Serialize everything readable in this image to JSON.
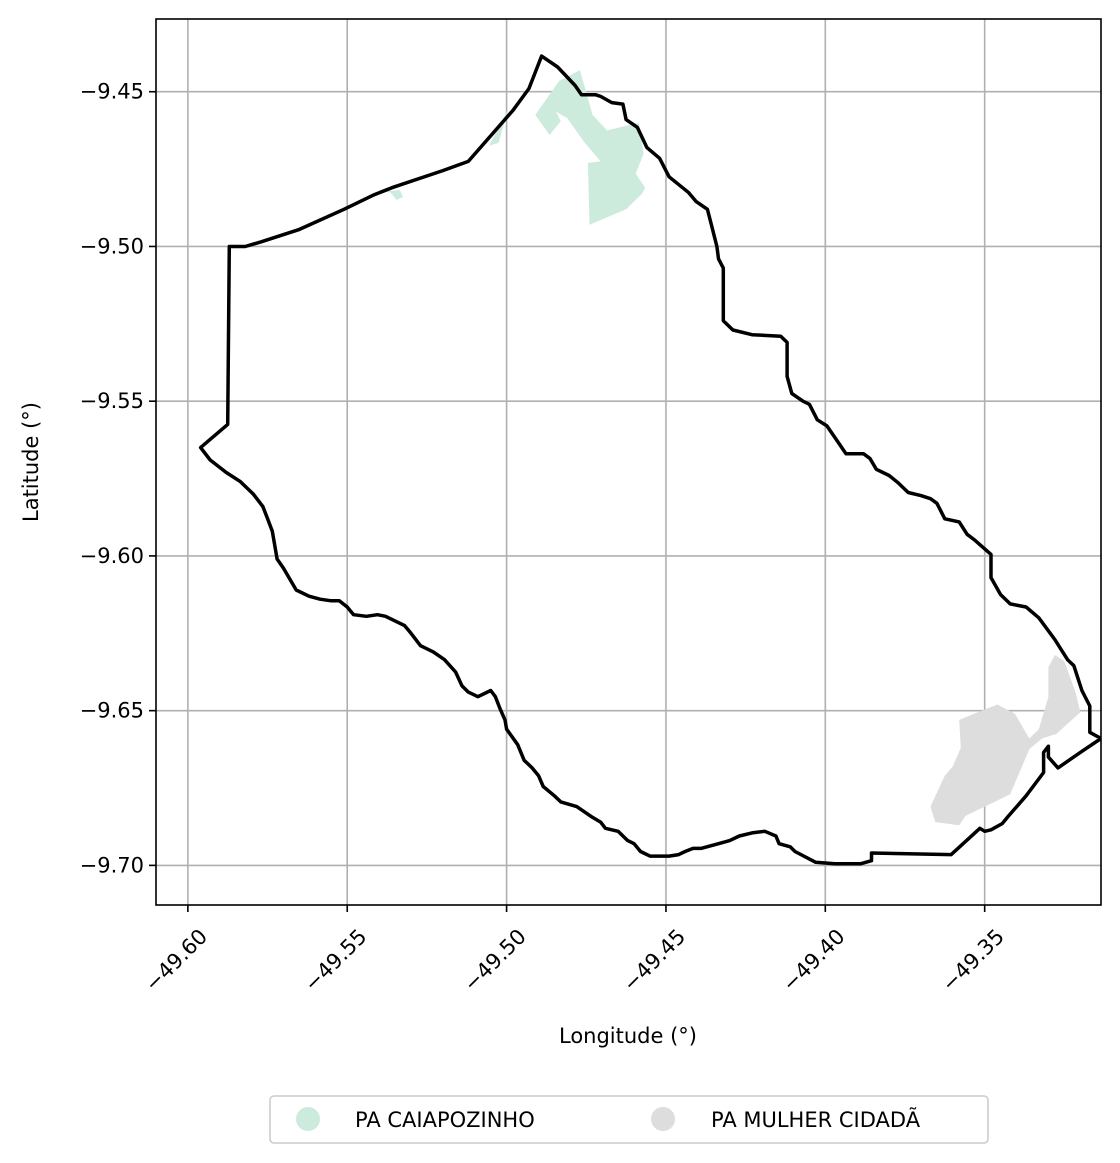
{
  "colors": {
    "boundary": "#000000",
    "grid": "#b0b0b0",
    "caiapozinho": "#cdebdd",
    "mulher_cidada": "#dddddd"
  },
  "chart_data": {
    "type": "map",
    "xlabel": "Longitude (°)",
    "ylabel": "Latitude (°)",
    "xlim": [
      -49.61,
      -49.3135
    ],
    "ylim": [
      -9.7128,
      -9.4265
    ],
    "x_ticks": [
      {
        "value": -49.6,
        "label": "−49.60"
      },
      {
        "value": -49.55,
        "label": "−49.55"
      },
      {
        "value": -49.5,
        "label": "−49.50"
      },
      {
        "value": -49.45,
        "label": "−49.45"
      },
      {
        "value": -49.4,
        "label": "−49.40"
      },
      {
        "value": -49.35,
        "label": "−49.35"
      }
    ],
    "y_ticks": [
      {
        "value": -9.45,
        "label": "−9.45"
      },
      {
        "value": -9.5,
        "label": "−9.50"
      },
      {
        "value": -9.55,
        "label": "−9.55"
      },
      {
        "value": -9.6,
        "label": "−9.60"
      },
      {
        "value": -9.65,
        "label": "−9.65"
      },
      {
        "value": -9.7,
        "label": "−9.70"
      }
    ],
    "grid": true,
    "legend": {
      "placement": "bottom-center",
      "entries": [
        {
          "label": "PA CAIAPOZINHO",
          "color": "#cdebdd"
        },
        {
          "label": "PA MULHER CIDADÃ",
          "color": "#dddddd"
        }
      ]
    },
    "settlements": [
      {
        "name": "PA CAIAPOZINHO",
        "color": "#cdebdd",
        "polygons": [
          [
            [
              -49.4995,
              -9.4555
            ],
            [
              -49.5035,
              -9.4635
            ],
            [
              -49.5055,
              -9.4675
            ],
            [
              -49.5025,
              -9.4665
            ]
          ],
          [
            [
              -49.4835,
              -9.4465
            ],
            [
              -49.477,
              -9.443
            ],
            [
              -49.473,
              -9.4575
            ],
            [
              -49.4685,
              -9.4625
            ],
            [
              -49.4585,
              -9.46
            ],
            [
              -49.457,
              -9.47
            ],
            [
              -49.4595,
              -9.4765
            ],
            [
              -49.4565,
              -9.481
            ],
            [
              -49.4575,
              -9.483
            ],
            [
              -49.4625,
              -9.488
            ],
            [
              -49.474,
              -9.493
            ],
            [
              -49.4745,
              -9.473
            ],
            [
              -49.4705,
              -9.4725
            ],
            [
              -49.4755,
              -9.4665
            ],
            [
              -49.481,
              -9.4585
            ],
            [
              -49.4845,
              -9.4565
            ],
            [
              -49.483,
              -9.4595
            ],
            [
              -49.4865,
              -9.464
            ],
            [
              -49.491,
              -9.4575
            ]
          ],
          [
            [
              -49.542,
              -9.4825
            ],
            [
              -49.5335,
              -9.4818
            ],
            [
              -49.5325,
              -9.484
            ],
            [
              -49.5345,
              -9.485
            ],
            [
              -49.5365,
              -9.4825
            ]
          ]
        ]
      },
      {
        "name": "PA MULHER CIDADÃ",
        "color": "#dddddd",
        "polygons": [
          [
            [
              -49.328,
              -9.632
            ],
            [
              -49.325,
              -9.634
            ],
            [
              -49.3215,
              -9.644
            ],
            [
              -49.32,
              -9.6505
            ],
            [
              -49.3275,
              -9.6575
            ],
            [
              -49.332,
              -9.659
            ],
            [
              -49.336,
              -9.6625
            ],
            [
              -49.342,
              -9.677
            ],
            [
              -49.35,
              -9.681
            ],
            [
              -49.356,
              -9.684
            ],
            [
              -49.358,
              -9.687
            ],
            [
              -49.3655,
              -9.686
            ],
            [
              -49.367,
              -9.681
            ],
            [
              -49.3625,
              -9.671
            ],
            [
              -49.36,
              -9.668
            ],
            [
              -49.3575,
              -9.662
            ],
            [
              -49.358,
              -9.653
            ],
            [
              -49.351,
              -9.65
            ],
            [
              -49.346,
              -9.648
            ],
            [
              -49.3405,
              -9.651
            ],
            [
              -49.336,
              -9.659
            ],
            [
              -49.333,
              -9.656
            ],
            [
              -49.33,
              -9.6455
            ],
            [
              -49.33,
              -9.636
            ]
          ]
        ]
      }
    ],
    "boundary": [
      [
        -49.489,
        -9.4385
      ],
      [
        -49.484,
        -9.442
      ],
      [
        -49.4785,
        -9.448
      ],
      [
        -49.4765,
        -9.451
      ],
      [
        -49.472,
        -9.451
      ],
      [
        -49.4705,
        -9.4515
      ],
      [
        -49.467,
        -9.4535
      ],
      [
        -49.4635,
        -9.454
      ],
      [
        -49.4625,
        -9.459
      ],
      [
        -49.459,
        -9.4615
      ],
      [
        -49.456,
        -9.468
      ],
      [
        -49.452,
        -9.4715
      ],
      [
        -49.449,
        -9.4775
      ],
      [
        -49.443,
        -9.4825
      ],
      [
        -49.4405,
        -9.4855
      ],
      [
        -49.437,
        -9.488
      ],
      [
        -49.436,
        -9.492
      ],
      [
        -49.434,
        -9.5
      ],
      [
        -49.4335,
        -9.504
      ],
      [
        -49.432,
        -9.507
      ],
      [
        -49.432,
        -9.5105
      ],
      [
        -49.432,
        -9.524
      ],
      [
        -49.429,
        -9.527
      ],
      [
        -49.423,
        -9.5285
      ],
      [
        -49.414,
        -9.529
      ],
      [
        -49.412,
        -9.531
      ],
      [
        -49.412,
        -9.542
      ],
      [
        -49.4105,
        -9.5475
      ],
      [
        -49.407,
        -9.55
      ],
      [
        -49.405,
        -9.551
      ],
      [
        -49.4025,
        -9.556
      ],
      [
        -49.3995,
        -9.558
      ],
      [
        -49.3955,
        -9.564
      ],
      [
        -49.3935,
        -9.567
      ],
      [
        -49.388,
        -9.567
      ],
      [
        -49.386,
        -9.5685
      ],
      [
        -49.384,
        -9.572
      ],
      [
        -49.38,
        -9.574
      ],
      [
        -49.377,
        -9.5765
      ],
      [
        -49.374,
        -9.5795
      ],
      [
        -49.37,
        -9.5805
      ],
      [
        -49.367,
        -9.5815
      ],
      [
        -49.365,
        -9.583
      ],
      [
        -49.3625,
        -9.588
      ],
      [
        -49.358,
        -9.589
      ],
      [
        -49.3555,
        -9.593
      ],
      [
        -49.353,
        -9.595
      ],
      [
        -49.348,
        -9.5995
      ],
      [
        -49.348,
        -9.607
      ],
      [
        -49.345,
        -9.6125
      ],
      [
        -49.342,
        -9.6155
      ],
      [
        -49.337,
        -9.6165
      ],
      [
        -49.333,
        -9.62
      ],
      [
        -49.328,
        -9.627
      ],
      [
        -49.324,
        -9.6335
      ],
      [
        -49.322,
        -9.6355
      ],
      [
        -49.3195,
        -9.6435
      ],
      [
        -49.317,
        -9.6485
      ],
      [
        -49.317,
        -9.657
      ],
      [
        -49.3135,
        -9.659
      ],
      [
        -49.32,
        -9.6635
      ],
      [
        -49.327,
        -9.6685
      ],
      [
        -49.33,
        -9.665
      ],
      [
        -49.33,
        -9.6615
      ],
      [
        -49.3315,
        -9.6635
      ],
      [
        -49.3315,
        -9.67
      ],
      [
        -49.337,
        -9.6775
      ],
      [
        -49.3425,
        -9.684
      ],
      [
        -49.3445,
        -9.6865
      ],
      [
        -49.348,
        -9.6885
      ],
      [
        -49.35,
        -9.689
      ],
      [
        -49.3515,
        -9.688
      ],
      [
        -49.3605,
        -9.6965
      ],
      [
        -49.3855,
        -9.696
      ],
      [
        -49.3855,
        -9.6985
      ],
      [
        -49.389,
        -9.6995
      ],
      [
        -49.397,
        -9.6995
      ],
      [
        -49.403,
        -9.699
      ],
      [
        -49.4095,
        -9.6955
      ],
      [
        -49.411,
        -9.694
      ],
      [
        -49.4145,
        -9.693
      ],
      [
        -49.4155,
        -9.6905
      ],
      [
        -49.419,
        -9.689
      ],
      [
        -49.423,
        -9.6895
      ],
      [
        -49.427,
        -9.6905
      ],
      [
        -49.43,
        -9.692
      ],
      [
        -49.4335,
        -9.693
      ],
      [
        -49.439,
        -9.6945
      ],
      [
        -49.4415,
        -9.6945
      ],
      [
        -49.444,
        -9.6955
      ],
      [
        -49.446,
        -9.6965
      ],
      [
        -49.449,
        -9.697
      ],
      [
        -49.455,
        -9.697
      ],
      [
        -49.458,
        -9.6955
      ],
      [
        -49.46,
        -9.693
      ],
      [
        -49.462,
        -9.692
      ],
      [
        -49.465,
        -9.689
      ],
      [
        -49.469,
        -9.688
      ],
      [
        -49.4705,
        -9.686
      ],
      [
        -49.473,
        -9.6845
      ],
      [
        -49.478,
        -9.681
      ],
      [
        -49.483,
        -9.6795
      ],
      [
        -49.485,
        -9.6775
      ],
      [
        -49.4885,
        -9.6745
      ],
      [
        -49.49,
        -9.671
      ],
      [
        -49.492,
        -9.6685
      ],
      [
        -49.4945,
        -9.666
      ],
      [
        -49.4965,
        -9.661
      ],
      [
        -49.5,
        -9.656
      ],
      [
        -49.5005,
        -9.653
      ],
      [
        -49.502,
        -9.6495
      ],
      [
        -49.5035,
        -9.6455
      ],
      [
        -49.505,
        -9.6435
      ],
      [
        -49.509,
        -9.6455
      ],
      [
        -49.512,
        -9.644
      ],
      [
        -49.514,
        -9.642
      ],
      [
        -49.516,
        -9.6375
      ],
      [
        -49.5195,
        -9.6335
      ],
      [
        -49.523,
        -9.631
      ],
      [
        -49.527,
        -9.629
      ],
      [
        -49.53,
        -9.625
      ],
      [
        -49.532,
        -9.6225
      ],
      [
        -49.535,
        -9.621
      ],
      [
        -49.538,
        -9.6195
      ],
      [
        -49.5405,
        -9.619
      ],
      [
        -49.544,
        -9.6195
      ],
      [
        -49.548,
        -9.619
      ],
      [
        -49.55,
        -9.6165
      ],
      [
        -49.5525,
        -9.6145
      ],
      [
        -49.555,
        -9.6145
      ],
      [
        -49.5585,
        -9.614
      ],
      [
        -49.562,
        -9.613
      ],
      [
        -49.566,
        -9.611
      ],
      [
        -49.57,
        -9.604
      ],
      [
        -49.572,
        -9.601
      ],
      [
        -49.5735,
        -9.592
      ],
      [
        -49.575,
        -9.588
      ],
      [
        -49.5765,
        -9.584
      ],
      [
        -49.5795,
        -9.58
      ],
      [
        -49.5835,
        -9.576
      ],
      [
        -49.588,
        -9.573
      ],
      [
        -49.593,
        -9.569
      ],
      [
        -49.596,
        -9.565
      ],
      [
        -49.5875,
        -9.5575
      ],
      [
        -49.587,
        -9.5
      ],
      [
        -49.582,
        -9.5
      ],
      [
        -49.577,
        -9.4985
      ],
      [
        -49.565,
        -9.4945
      ],
      [
        -49.551,
        -9.488
      ],
      [
        -49.542,
        -9.4835
      ],
      [
        -49.536,
        -9.481
      ],
      [
        -49.52,
        -9.4755
      ],
      [
        -49.512,
        -9.4725
      ],
      [
        -49.498,
        -9.456
      ],
      [
        -49.493,
        -9.449
      ],
      [
        -49.489,
        -9.4385
      ]
    ]
  }
}
